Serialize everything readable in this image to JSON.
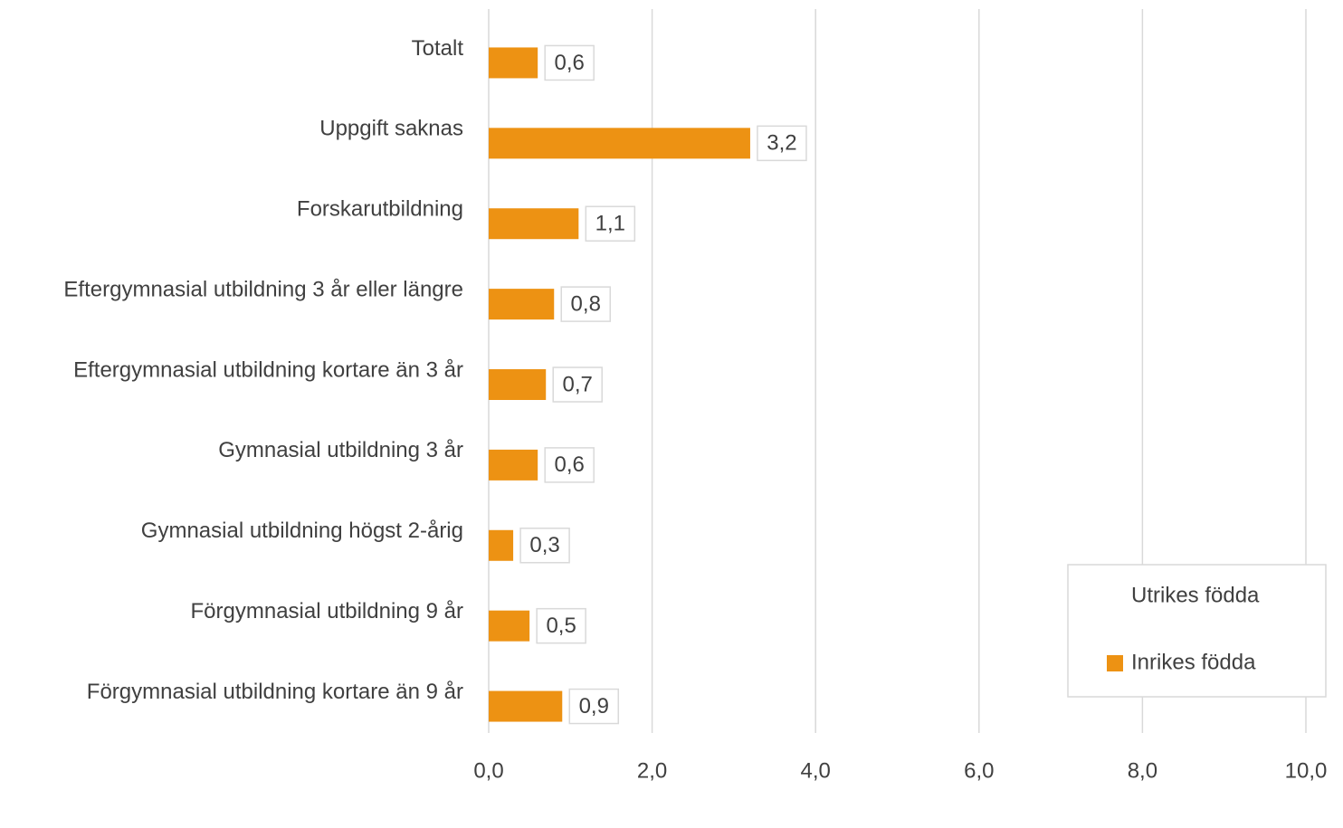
{
  "chart_data": {
    "type": "bar",
    "orientation": "horizontal",
    "categories": [
      "Totalt",
      "Uppgift saknas",
      "Forskarutbildning",
      "Eftergymnasial utbildning 3 år eller längre",
      "Eftergymnasial utbildning kortare än 3 år",
      "Gymnasial utbildning 3 år",
      "Gymnasial utbildning högst 2-årig",
      "Förgymnasial utbildning 9 år",
      "Förgymnasial utbildning kortare än 9 år"
    ],
    "series": [
      {
        "name": "Utrikes födda",
        "values": [
          null,
          null,
          null,
          null,
          null,
          null,
          null,
          null,
          null
        ]
      },
      {
        "name": "Inrikes födda",
        "color": "#ed9213",
        "values": [
          0.6,
          3.2,
          1.1,
          0.8,
          0.7,
          0.6,
          0.3,
          0.5,
          0.9
        ],
        "value_labels": [
          "0,6",
          "3,2",
          "1,1",
          "0,8",
          "0,7",
          "0,6",
          "0,3",
          "0,5",
          "0,9"
        ]
      }
    ],
    "xlim": [
      0,
      10
    ],
    "xticks": [
      {
        "value": 0,
        "label": "0,0"
      },
      {
        "value": 2,
        "label": "2,0"
      },
      {
        "value": 4,
        "label": "4,0"
      },
      {
        "value": 6,
        "label": "6,0"
      },
      {
        "value": 8,
        "label": "8,0"
      },
      {
        "value": 10,
        "label": "10,0"
      }
    ],
    "grid": true,
    "legend": "lower right"
  }
}
